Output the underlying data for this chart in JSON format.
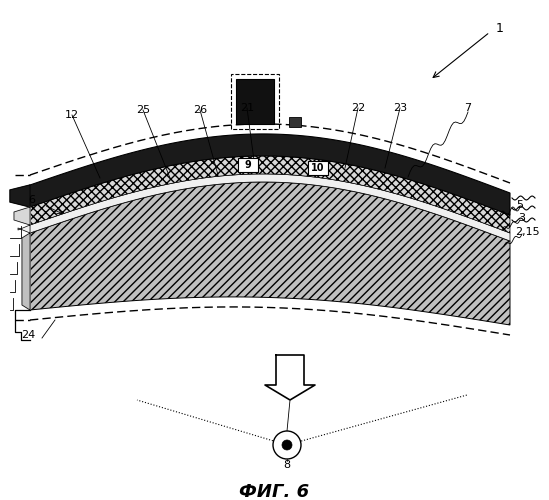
{
  "title": "ФИГ. 6",
  "bg_color": "#ffffff",
  "figw": 5.49,
  "figh": 5.0,
  "dpi": 100
}
